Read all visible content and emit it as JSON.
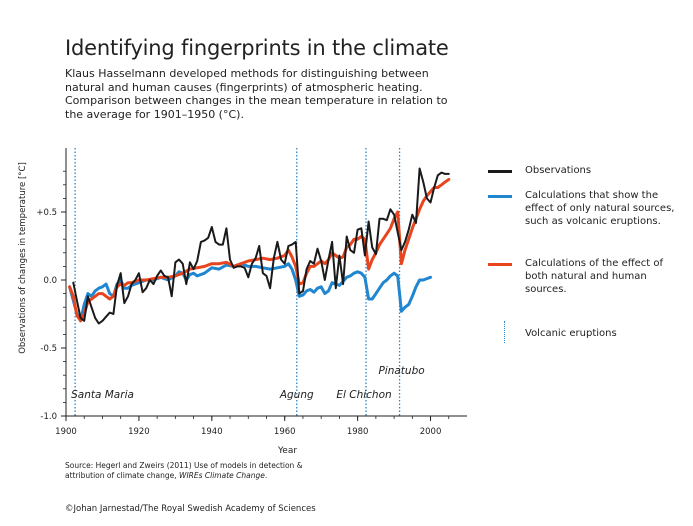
{
  "title": "Identifying fingerprints in the climate",
  "subtitle": [
    "Klaus Hasselmann developed methods for distinguishing between",
    "natural and human causes (fingerprints) of atmospheric heating.",
    "Comparison between changes in the mean temperature in relation to",
    "the average for 1901–1950 (°C)."
  ],
  "source": {
    "line1": "Source: Hegerl and Zweirs (2011) Use of models in detection &",
    "line2_prefix": "attribution of climate change, ",
    "line2_italic": "WIREs Climate Change",
    "line2_suffix": "."
  },
  "copyright": "©Johan Jarnestad/The Royal Swedish Academy of Sciences",
  "legend": {
    "observations": "Observations",
    "natural": "Calculations that show the effect of only natural sources, such as volcanic eruptions.",
    "combined": "Calculations of the effect of both natural and human sources.",
    "volcanic": "Volcanic eruptions"
  },
  "colors": {
    "observations": "#1a1a1a",
    "natural": "#1f86cf",
    "combined": "#e8451f",
    "volcanic": "#2e86c8"
  },
  "chart_data": {
    "type": "line",
    "xlabel": "Year",
    "ylabel": "Observations of changes in temperature [°C]",
    "xlim": [
      1900,
      2010
    ],
    "ylim": [
      -1.0,
      0.9
    ],
    "x_ticks": [
      1900,
      1920,
      1940,
      1960,
      1980,
      2000
    ],
    "y_ticks": [
      {
        "value": 0.5,
        "label": "+0.5"
      },
      {
        "value": 0.0,
        "label": "0.0"
      },
      {
        "value": -0.5,
        "label": "-0.5"
      },
      {
        "value": -1.0,
        "label": "-1.0"
      }
    ],
    "volcanic_eruptions": [
      {
        "year": 1902.5,
        "name": "Santa Maria",
        "label_pos": "bottom"
      },
      {
        "year": 1963.3,
        "name": "Agung",
        "label_pos": "bottom"
      },
      {
        "year": 1982.3,
        "name": "El Chichon",
        "label_pos": "bottom"
      },
      {
        "year": 1991.5,
        "name": "Pinatubo",
        "label_pos": "upper"
      }
    ],
    "series": [
      {
        "name": "Observations",
        "color": "#1a1a1a",
        "x": [
          1902,
          1903,
          1904,
          1905,
          1906,
          1907,
          1908,
          1909,
          1910,
          1911,
          1912,
          1913,
          1914,
          1915,
          1916,
          1917,
          1918,
          1919,
          1920,
          1921,
          1922,
          1923,
          1924,
          1925,
          1926,
          1927,
          1928,
          1929,
          1930,
          1931,
          1932,
          1933,
          1934,
          1935,
          1936,
          1937,
          1938,
          1939,
          1940,
          1941,
          1942,
          1943,
          1944,
          1945,
          1946,
          1947,
          1948,
          1949,
          1950,
          1951,
          1952,
          1953,
          1954,
          1955,
          1956,
          1957,
          1958,
          1959,
          1960,
          1961,
          1962,
          1963,
          1964,
          1965,
          1966,
          1967,
          1968,
          1969,
          1970,
          1971,
          1972,
          1973,
          1974,
          1975,
          1976,
          1977,
          1978,
          1979,
          1980,
          1981,
          1982,
          1983,
          1984,
          1985,
          1986,
          1987,
          1988,
          1989,
          1990,
          1991,
          1992,
          1993,
          1994,
          1995,
          1996,
          1997,
          1998,
          1999,
          2000,
          2001,
          2002,
          2003,
          2004,
          2005
        ],
        "y": [
          -0.02,
          -0.15,
          -0.28,
          -0.3,
          -0.12,
          -0.2,
          -0.28,
          -0.32,
          -0.3,
          -0.27,
          -0.24,
          -0.25,
          -0.04,
          0.05,
          -0.17,
          -0.12,
          -0.03,
          0.0,
          0.05,
          -0.09,
          -0.06,
          0.0,
          -0.03,
          0.03,
          0.07,
          0.03,
          0.02,
          -0.12,
          0.13,
          0.15,
          0.12,
          -0.03,
          0.13,
          0.08,
          0.14,
          0.28,
          0.29,
          0.31,
          0.39,
          0.28,
          0.26,
          0.26,
          0.38,
          0.15,
          0.09,
          0.1,
          0.1,
          0.09,
          0.02,
          0.12,
          0.16,
          0.25,
          0.05,
          0.03,
          -0.06,
          0.16,
          0.28,
          0.15,
          0.12,
          0.25,
          0.26,
          0.28,
          -0.1,
          -0.08,
          0.08,
          0.14,
          0.12,
          0.23,
          0.14,
          0.0,
          0.15,
          0.28,
          -0.06,
          0.18,
          -0.03,
          0.32,
          0.22,
          0.2,
          0.37,
          0.38,
          0.18,
          0.43,
          0.24,
          0.19,
          0.45,
          0.45,
          0.44,
          0.52,
          0.48,
          0.35,
          0.22,
          0.28,
          0.37,
          0.48,
          0.42,
          0.82,
          0.72,
          0.6,
          0.57,
          0.68,
          0.77,
          0.79,
          0.78,
          0.78
        ]
      },
      {
        "name": "Calculations that show the effect of only natural sources, such as volcanic eruptions.",
        "color": "#1f86cf",
        "x": [
          1901,
          1902,
          1903,
          1904,
          1905,
          1906,
          1907,
          1908,
          1909,
          1910,
          1911,
          1912,
          1913,
          1914,
          1915,
          1916,
          1917,
          1918,
          1920,
          1922,
          1924,
          1926,
          1928,
          1930,
          1931,
          1932,
          1933,
          1934,
          1935,
          1936,
          1938,
          1940,
          1942,
          1944,
          1946,
          1948,
          1950,
          1952,
          1954,
          1956,
          1958,
          1960,
          1961,
          1962,
          1963,
          1964,
          1965,
          1966,
          1967,
          1968,
          1969,
          1970,
          1971,
          1972,
          1973,
          1974,
          1975,
          1976,
          1977,
          1978,
          1979,
          1980,
          1981,
          1982,
          1983,
          1984,
          1985,
          1986,
          1987,
          1988,
          1989,
          1990,
          1991,
          1992,
          1993,
          1994,
          1995,
          1996,
          1997,
          1998,
          1999,
          2000
        ],
        "y": [
          -0.05,
          -0.15,
          -0.25,
          -0.3,
          -0.18,
          -0.1,
          -0.12,
          -0.08,
          -0.06,
          -0.05,
          -0.03,
          -0.1,
          -0.12,
          -0.03,
          0.0,
          -0.06,
          -0.06,
          -0.04,
          -0.02,
          0.0,
          0.0,
          0.02,
          0.0,
          0.03,
          0.06,
          0.05,
          0.0,
          0.04,
          0.05,
          0.03,
          0.05,
          0.09,
          0.08,
          0.11,
          0.1,
          0.12,
          0.1,
          0.1,
          0.09,
          0.08,
          0.09,
          0.1,
          0.12,
          0.08,
          0.0,
          -0.12,
          -0.11,
          -0.08,
          -0.07,
          -0.09,
          -0.06,
          -0.05,
          -0.1,
          -0.08,
          -0.02,
          -0.03,
          -0.04,
          -0.01,
          0.02,
          0.03,
          0.05,
          0.06,
          0.05,
          0.02,
          -0.14,
          -0.14,
          -0.1,
          -0.06,
          -0.02,
          0.0,
          0.03,
          0.05,
          0.03,
          -0.23,
          -0.2,
          -0.18,
          -0.12,
          -0.05,
          0.0,
          0.0,
          0.01,
          0.02
        ]
      },
      {
        "name": "Calculations of the effect of both natural and human sources.",
        "color": "#e8451f",
        "x": [
          1901,
          1902,
          1903,
          1904,
          1905,
          1906,
          1907,
          1908,
          1909,
          1910,
          1911,
          1912,
          1913,
          1914,
          1915,
          1916,
          1917,
          1918,
          1920,
          1922,
          1924,
          1926,
          1928,
          1930,
          1932,
          1934,
          1936,
          1938,
          1940,
          1942,
          1944,
          1946,
          1948,
          1950,
          1952,
          1954,
          1956,
          1958,
          1960,
          1961,
          1962,
          1963,
          1964,
          1965,
          1966,
          1967,
          1968,
          1969,
          1970,
          1971,
          1972,
          1973,
          1974,
          1975,
          1976,
          1977,
          1978,
          1979,
          1980,
          1981,
          1982,
          1983,
          1984,
          1985,
          1986,
          1987,
          1988,
          1989,
          1990,
          1991,
          1992,
          1993,
          1994,
          1995,
          1996,
          1997,
          1998,
          1999,
          2000,
          2001,
          2002,
          2003,
          2004,
          2005
        ],
        "y": [
          -0.05,
          -0.12,
          -0.26,
          -0.3,
          -0.25,
          -0.16,
          -0.14,
          -0.12,
          -0.1,
          -0.1,
          -0.12,
          -0.14,
          -0.12,
          -0.05,
          -0.03,
          -0.04,
          -0.02,
          -0.02,
          0.0,
          0.0,
          0.01,
          0.02,
          0.02,
          0.03,
          0.05,
          0.08,
          0.09,
          0.1,
          0.12,
          0.12,
          0.13,
          0.1,
          0.12,
          0.14,
          0.15,
          0.16,
          0.15,
          0.16,
          0.18,
          0.22,
          0.17,
          0.1,
          -0.03,
          -0.02,
          0.05,
          0.1,
          0.1,
          0.12,
          0.14,
          0.12,
          0.15,
          0.2,
          0.18,
          0.16,
          0.17,
          0.24,
          0.26,
          0.3,
          0.3,
          0.32,
          0.3,
          0.08,
          0.15,
          0.2,
          0.26,
          0.3,
          0.34,
          0.38,
          0.45,
          0.5,
          0.12,
          0.22,
          0.3,
          0.38,
          0.45,
          0.52,
          0.58,
          0.62,
          0.65,
          0.68,
          0.68,
          0.7,
          0.72,
          0.74
        ]
      }
    ]
  }
}
